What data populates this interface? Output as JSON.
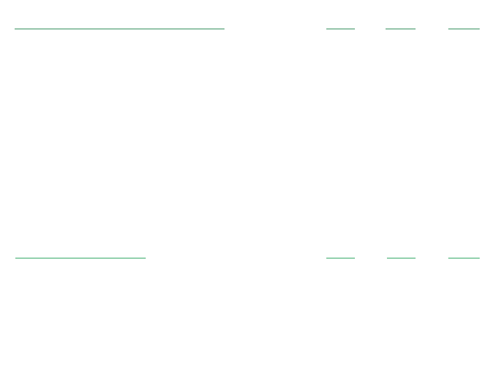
{
  "colors": {
    "header_rule": "#2e8b57",
    "row_rule": "#8ecfaa",
    "background": "#ffffff"
  },
  "rows": [
    {
      "style": "header_rule"
    },
    {
      "style": "row_rule"
    }
  ]
}
